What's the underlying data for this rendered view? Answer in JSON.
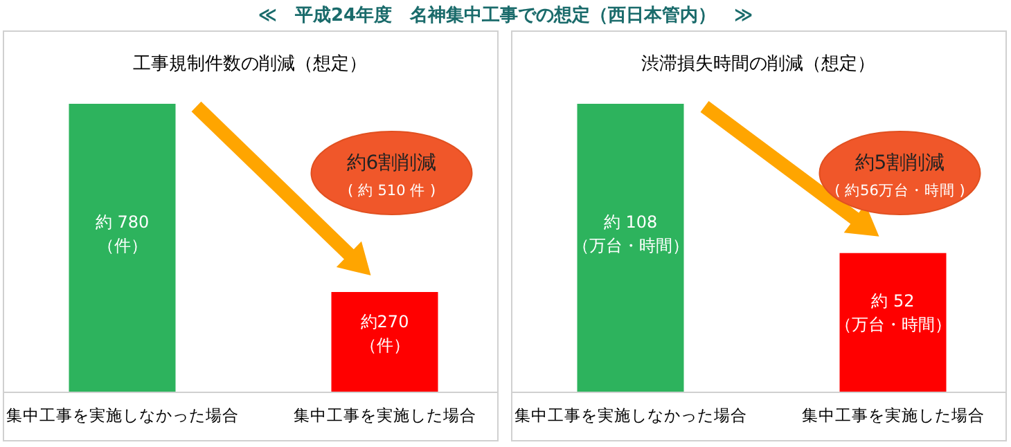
{
  "chart_data": [
    {
      "type": "other",
      "title": "≪　平成24年度　名神集中工事での想定（西日本管内）　≫"
    },
    {
      "type": "bar",
      "title": "工事規制件数の削減（想定）",
      "categories": [
        "集中工事を実施しなかった場合",
        "集中工事を実施した場合"
      ],
      "values": [
        780,
        270
      ],
      "colors": [
        "#2db35d",
        "#ff0000"
      ],
      "value_labels": [
        "約 780\n（件）",
        "約270\n（件）"
      ],
      "annotations": [
        "約6割削減",
        "( 約 510 件 )"
      ]
    },
    {
      "type": "bar",
      "title": "渋滞損失時間の削減（想定）",
      "categories": [
        "集中工事を実施しなかった場合",
        "集中工事を実施した場合"
      ],
      "values": [
        108,
        52
      ],
      "colors": [
        "#2db35d",
        "#ff0000"
      ],
      "value_labels": [
        "約 108\n（万台・時間）",
        "約 52\n（万台・時間）"
      ],
      "annotations": [
        "約5割削減",
        "( 約56万台・時間 )"
      ]
    }
  ]
}
